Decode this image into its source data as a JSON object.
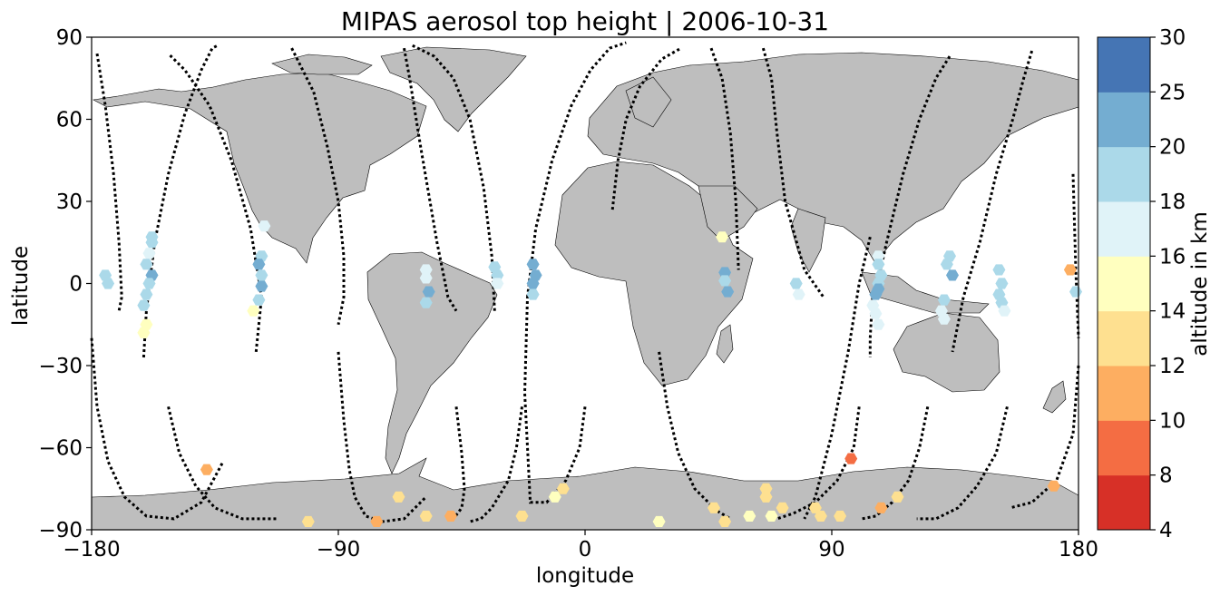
{
  "chart_data": {
    "type": "scatter",
    "title": "MIPAS aerosol top height | 2006-10-31",
    "xlabel": "longitude",
    "ylabel": "latitude",
    "xlim": [
      -180,
      180
    ],
    "ylim": [
      -90,
      90
    ],
    "xticks": [
      -180,
      -90,
      0,
      90,
      180
    ],
    "xtick_labels": [
      "−180",
      "−90",
      "0",
      "90",
      "180"
    ],
    "yticks": [
      -90,
      -60,
      -30,
      0,
      30,
      60,
      90
    ],
    "ytick_labels": [
      "−90",
      "−60",
      "−30",
      "0",
      "30",
      "60",
      "90"
    ],
    "grid": false,
    "land_color": "#bebebe",
    "track_color": "#000000",
    "colorbar": {
      "label": "altitude in km",
      "boundaries": [
        4,
        8,
        10,
        12,
        14,
        16,
        18,
        20,
        25,
        30
      ],
      "tick_labels": [
        "4",
        "8",
        "10",
        "12",
        "14",
        "16",
        "18",
        "20",
        "25",
        "30"
      ],
      "colors": [
        "#a50026",
        "#d73027",
        "#f46d43",
        "#fdae61",
        "#fee090",
        "#ffffbf",
        "#e0f3f8",
        "#abd9e9",
        "#74add1",
        "#4575b4",
        "#313695"
      ]
    },
    "tracks": [
      {
        "lon": [
          -178,
          -175,
          -172,
          -170,
          -169,
          -170
        ],
        "lat": [
          84,
          65,
          40,
          15,
          -5,
          -10
        ]
      },
      {
        "lon": [
          -180,
          -178,
          -174,
          -168,
          -160,
          -150,
          -140,
          -132
        ],
        "lat": [
          -20,
          -45,
          -65,
          -78,
          -85,
          -86,
          -80,
          -65
        ]
      },
      {
        "lon": [
          -161,
          -160,
          -157,
          -152,
          -146,
          -140,
          -136,
          -134
        ],
        "lat": [
          -27,
          -10,
          15,
          40,
          62,
          78,
          86,
          87
        ]
      },
      {
        "lon": [
          -120,
          -118,
          -122,
          -129,
          -137,
          -146,
          -152
        ],
        "lat": [
          -25,
          -5,
          20,
          45,
          65,
          78,
          84
        ]
      },
      {
        "lon": [
          -152,
          -148,
          -142,
          -135,
          -125,
          -112
        ],
        "lat": [
          -45,
          -62,
          -74,
          -82,
          -86,
          -86
        ]
      },
      {
        "lon": [
          -107,
          -104,
          -99,
          -94,
          -90,
          -88,
          -88,
          -90
        ],
        "lat": [
          86,
          80,
          70,
          50,
          30,
          10,
          -5,
          -15
        ]
      },
      {
        "lon": [
          -90,
          -88,
          -86,
          -84,
          -80,
          -74,
          -66,
          -58
        ],
        "lat": [
          -25,
          -50,
          -68,
          -78,
          -85,
          -87,
          -86,
          -78
        ]
      },
      {
        "lon": [
          -66,
          -64,
          -60,
          -54,
          -50,
          -47
        ],
        "lat": [
          86,
          75,
          50,
          15,
          -5,
          -10
        ]
      },
      {
        "lon": [
          -47,
          -45,
          -44,
          -45,
          -48
        ],
        "lat": [
          -45,
          -62,
          -75,
          -82,
          -86
        ]
      },
      {
        "lon": [
          -33,
          -34,
          -37,
          -42,
          -48,
          -55,
          -63
        ],
        "lat": [
          -10,
          10,
          35,
          60,
          75,
          83,
          87
        ]
      },
      {
        "lon": [
          -23,
          -25,
          -28,
          -34,
          -38,
          -42
        ],
        "lat": [
          -45,
          -60,
          -72,
          -82,
          -86,
          -87
        ]
      },
      {
        "lon": [
          0,
          -2,
          -7,
          -14,
          -20,
          -22,
          -21
        ],
        "lat": [
          -45,
          -60,
          -72,
          -80,
          -80,
          -40,
          -5
        ]
      },
      {
        "lon": [
          -21,
          -18,
          -12,
          -5,
          2,
          9,
          15
        ],
        "lat": [
          -5,
          20,
          45,
          65,
          78,
          86,
          88
        ]
      },
      {
        "lon": [
          10,
          12,
          15,
          20,
          28,
          35
        ],
        "lat": [
          27,
          45,
          60,
          72,
          82,
          86
        ]
      },
      {
        "lon": [
          27,
          30,
          34,
          40,
          48,
          53
        ],
        "lat": [
          -25,
          -45,
          -62,
          -75,
          -83,
          -86
        ]
      },
      {
        "lon": [
          46,
          50,
          53,
          55,
          56
        ],
        "lat": [
          86,
          75,
          55,
          30,
          5
        ]
      },
      {
        "lon": [
          65,
          68,
          70,
          73,
          80,
          87
        ],
        "lat": [
          86,
          75,
          55,
          30,
          5,
          -5
        ]
      },
      {
        "lon": [
          100,
          98,
          92,
          84,
          76,
          70
        ],
        "lat": [
          -45,
          -60,
          -72,
          -80,
          -84,
          -86
        ]
      },
      {
        "lon": [
          104,
          100,
          96,
          90,
          84,
          80
        ],
        "lat": [
          17,
          0,
          -25,
          -55,
          -78,
          -86
        ]
      },
      {
        "lon": [
          133,
          128,
          122,
          116,
          110,
          106
        ],
        "lat": [
          83,
          75,
          60,
          40,
          15,
          -3
        ]
      },
      {
        "lon": [
          105,
          104,
          104
        ],
        "lat": [
          -3,
          -20,
          -27
        ]
      },
      {
        "lon": [
          125,
          122,
          118,
          112,
          106,
          101
        ],
        "lat": [
          -45,
          -60,
          -72,
          -80,
          -85,
          -86
        ]
      },
      {
        "lon": [
          163,
          160,
          156,
          150,
          144,
          138,
          134
        ],
        "lat": [
          85,
          75,
          60,
          40,
          15,
          -5,
          -25
        ]
      },
      {
        "lon": [
          154,
          150,
          143,
          136,
          128,
          121
        ],
        "lat": [
          -45,
          -62,
          -74,
          -82,
          -86,
          -86
        ]
      },
      {
        "lon": [
          178,
          179,
          180
        ],
        "lat": [
          40,
          5,
          -20
        ]
      },
      {
        "lon": [
          180,
          178,
          172,
          163,
          155
        ],
        "lat": [
          -30,
          -55,
          -72,
          -80,
          -82
        ]
      }
    ],
    "points": [
      {
        "lon": -158,
        "lat": 17,
        "alt": 19
      },
      {
        "lon": -158,
        "lat": 15,
        "alt": 19
      },
      {
        "lon": -159,
        "lat": 11,
        "alt": 17
      },
      {
        "lon": -160,
        "lat": 7,
        "alt": 19
      },
      {
        "lon": -158,
        "lat": 3,
        "alt": 22
      },
      {
        "lon": -159,
        "lat": 0,
        "alt": 19
      },
      {
        "lon": -160,
        "lat": -4,
        "alt": 19
      },
      {
        "lon": -161,
        "lat": -8,
        "alt": 19
      },
      {
        "lon": -160,
        "lat": -15,
        "alt": 15
      },
      {
        "lon": -161,
        "lat": -18,
        "alt": 15
      },
      {
        "lon": -175,
        "lat": 3,
        "alt": 19
      },
      {
        "lon": -174,
        "lat": 0,
        "alt": 19
      },
      {
        "lon": -117,
        "lat": 21,
        "alt": 17
      },
      {
        "lon": -118,
        "lat": 10,
        "alt": 19
      },
      {
        "lon": -119,
        "lat": 7,
        "alt": 22
      },
      {
        "lon": -118,
        "lat": 3,
        "alt": 19
      },
      {
        "lon": -118,
        "lat": -1,
        "alt": 22
      },
      {
        "lon": -119,
        "lat": -6,
        "alt": 19
      },
      {
        "lon": -121,
        "lat": -10,
        "alt": 15
      },
      {
        "lon": -58,
        "lat": 5,
        "alt": 17
      },
      {
        "lon": -58,
        "lat": 2,
        "alt": 17
      },
      {
        "lon": -57,
        "lat": -3,
        "alt": 22
      },
      {
        "lon": -58,
        "lat": -7,
        "alt": 19
      },
      {
        "lon": -33,
        "lat": 6,
        "alt": 19
      },
      {
        "lon": -32,
        "lat": 3,
        "alt": 19
      },
      {
        "lon": -32,
        "lat": 0,
        "alt": 17
      },
      {
        "lon": -19,
        "lat": 7,
        "alt": 22
      },
      {
        "lon": -18,
        "lat": 3,
        "alt": 22
      },
      {
        "lon": -19,
        "lat": 0,
        "alt": 22
      },
      {
        "lon": -19,
        "lat": -4,
        "alt": 19
      },
      {
        "lon": 50,
        "lat": 17,
        "alt": 15
      },
      {
        "lon": 51,
        "lat": 4,
        "alt": 22
      },
      {
        "lon": 51,
        "lat": 1,
        "alt": 19
      },
      {
        "lon": 52,
        "lat": -3,
        "alt": 22
      },
      {
        "lon": 77,
        "lat": 0,
        "alt": 19
      },
      {
        "lon": 78,
        "lat": -4,
        "alt": 17
      },
      {
        "lon": 107,
        "lat": 10,
        "alt": 17
      },
      {
        "lon": 107,
        "lat": 7,
        "alt": 19
      },
      {
        "lon": 108,
        "lat": 3,
        "alt": 19
      },
      {
        "lon": 107,
        "lat": 0,
        "alt": 19
      },
      {
        "lon": 107,
        "lat": -2,
        "alt": 22
      },
      {
        "lon": 106,
        "lat": -4,
        "alt": 22
      },
      {
        "lon": 105,
        "lat": -8,
        "alt": 17
      },
      {
        "lon": 106,
        "lat": -11,
        "alt": 17
      },
      {
        "lon": 107,
        "lat": -15,
        "alt": 17
      },
      {
        "lon": 133,
        "lat": 10,
        "alt": 19
      },
      {
        "lon": 132,
        "lat": 7,
        "alt": 19
      },
      {
        "lon": 134,
        "lat": 3,
        "alt": 22
      },
      {
        "lon": 131,
        "lat": -6,
        "alt": 19
      },
      {
        "lon": 130,
        "lat": -10,
        "alt": 17
      },
      {
        "lon": 131,
        "lat": -13,
        "alt": 17
      },
      {
        "lon": 151,
        "lat": 5,
        "alt": 19
      },
      {
        "lon": 152,
        "lat": 0,
        "alt": 19
      },
      {
        "lon": 151,
        "lat": -4,
        "alt": 19
      },
      {
        "lon": 152,
        "lat": -7,
        "alt": 19
      },
      {
        "lon": 153,
        "lat": -10,
        "alt": 17
      },
      {
        "lon": 177,
        "lat": 5,
        "alt": 11
      },
      {
        "lon": 179,
        "lat": -3,
        "alt": 19
      },
      {
        "lon": -138,
        "lat": -68,
        "alt": 11
      },
      {
        "lon": -68,
        "lat": -78,
        "alt": 13
      },
      {
        "lon": -8,
        "lat": -75,
        "alt": 13
      },
      {
        "lon": -11,
        "lat": -78,
        "alt": 15
      },
      {
        "lon": -101,
        "lat": -87,
        "alt": 13
      },
      {
        "lon": -76,
        "lat": -87,
        "alt": 11
      },
      {
        "lon": -58,
        "lat": -85,
        "alt": 13
      },
      {
        "lon": -49,
        "lat": -85,
        "alt": 11
      },
      {
        "lon": -23,
        "lat": -85,
        "alt": 13
      },
      {
        "lon": 27,
        "lat": -87,
        "alt": 15
      },
      {
        "lon": 47,
        "lat": -82,
        "alt": 13
      },
      {
        "lon": 51,
        "lat": -87,
        "alt": 13
      },
      {
        "lon": 60,
        "lat": -85,
        "alt": 15
      },
      {
        "lon": 66,
        "lat": -75,
        "alt": 13
      },
      {
        "lon": 66,
        "lat": -78,
        "alt": 13
      },
      {
        "lon": 68,
        "lat": -85,
        "alt": 15
      },
      {
        "lon": 72,
        "lat": -82,
        "alt": 13
      },
      {
        "lon": 84,
        "lat": -82,
        "alt": 13
      },
      {
        "lon": 86,
        "lat": -85,
        "alt": 13
      },
      {
        "lon": 93,
        "lat": -85,
        "alt": 13
      },
      {
        "lon": 97,
        "lat": -64,
        "alt": 9
      },
      {
        "lon": 108,
        "lat": -82,
        "alt": 11
      },
      {
        "lon": 114,
        "lat": -78,
        "alt": 13
      },
      {
        "lon": 171,
        "lat": -74,
        "alt": 11
      }
    ]
  }
}
